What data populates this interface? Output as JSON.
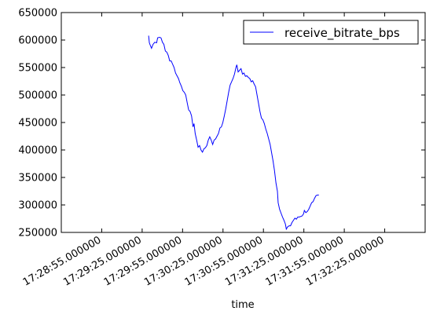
{
  "chart_data": {
    "type": "line",
    "title": "",
    "xlabel": "time",
    "ylabel": "",
    "x_ticks": [
      "17:28:55.000000",
      "17:29:25.000000",
      "17:29:55.000000",
      "17:30:25.000000",
      "17:30:55.000000",
      "17:31:25.000000",
      "17:31:55.000000",
      "17:32:25.000000"
    ],
    "x_range_seconds": [
      0,
      250
    ],
    "y_ticks": [
      250000,
      300000,
      350000,
      400000,
      450000,
      500000,
      550000,
      600000,
      650000
    ],
    "ylim": [
      250000,
      650000
    ],
    "grid": false,
    "legend_position": "top-right",
    "series": [
      {
        "name": "receive_bitrate_bps",
        "color": "#0000ff",
        "points": [
          [
            60.0,
            608000
          ],
          [
            60.5,
            595000
          ],
          [
            61.2,
            590000
          ],
          [
            62.0,
            585000
          ],
          [
            63.0,
            592000
          ],
          [
            64.2,
            596000
          ],
          [
            65.5,
            595000
          ],
          [
            66.2,
            604000
          ],
          [
            67.5,
            605000
          ],
          [
            68.5,
            604000
          ],
          [
            69.5,
            596000
          ],
          [
            70.5,
            592000
          ],
          [
            71.5,
            580000
          ],
          [
            72.5,
            578000
          ],
          [
            73.5,
            572000
          ],
          [
            74.5,
            562000
          ],
          [
            75.5,
            562000
          ],
          [
            76.5,
            556000
          ],
          [
            77.5,
            550000
          ],
          [
            78.5,
            540000
          ],
          [
            79.5,
            535000
          ],
          [
            80.5,
            530000
          ],
          [
            81.5,
            522000
          ],
          [
            82.5,
            516000
          ],
          [
            83.5,
            508000
          ],
          [
            84.5,
            505000
          ],
          [
            85.5,
            500000
          ],
          [
            86.5,
            486000
          ],
          [
            87.5,
            473000
          ],
          [
            88.5,
            470000
          ],
          [
            89.5,
            462000
          ],
          [
            90.5,
            442000
          ],
          [
            91.2,
            448000
          ],
          [
            92.0,
            430000
          ],
          [
            93.0,
            418000
          ],
          [
            94.0,
            405000
          ],
          [
            95.0,
            408000
          ],
          [
            96.0,
            400000
          ],
          [
            97.0,
            396000
          ],
          [
            98.0,
            402000
          ],
          [
            99.0,
            404000
          ],
          [
            100.0,
            408000
          ],
          [
            101.0,
            418000
          ],
          [
            102.0,
            424000
          ],
          [
            103.0,
            418000
          ],
          [
            104.0,
            410000
          ],
          [
            105.0,
            418000
          ],
          [
            106.0,
            420000
          ],
          [
            107.0,
            425000
          ],
          [
            108.0,
            430000
          ],
          [
            109.0,
            440000
          ],
          [
            110.0,
            442000
          ],
          [
            111.0,
            450000
          ],
          [
            112.0,
            462000
          ],
          [
            113.0,
            475000
          ],
          [
            114.0,
            490000
          ],
          [
            115.0,
            505000
          ],
          [
            116.0,
            518000
          ],
          [
            117.0,
            524000
          ],
          [
            118.0,
            530000
          ],
          [
            119.0,
            538000
          ],
          [
            120.0,
            550000
          ],
          [
            120.6,
            555000
          ],
          [
            121.5,
            542000
          ],
          [
            122.5,
            545000
          ],
          [
            123.5,
            548000
          ],
          [
            124.5,
            538000
          ],
          [
            125.5,
            540000
          ],
          [
            126.5,
            534000
          ],
          [
            127.5,
            535000
          ],
          [
            128.5,
            532000
          ],
          [
            129.5,
            530000
          ],
          [
            130.5,
            524000
          ],
          [
            131.5,
            526000
          ],
          [
            132.5,
            520000
          ],
          [
            133.5,
            515000
          ],
          [
            134.5,
            500000
          ],
          [
            135.5,
            485000
          ],
          [
            136.5,
            470000
          ],
          [
            137.5,
            458000
          ],
          [
            138.5,
            455000
          ],
          [
            139.5,
            448000
          ],
          [
            140.5,
            438000
          ],
          [
            141.5,
            430000
          ],
          [
            142.5,
            420000
          ],
          [
            143.5,
            410000
          ],
          [
            144.5,
            395000
          ],
          [
            145.5,
            380000
          ],
          [
            146.5,
            362000
          ],
          [
            147.5,
            340000
          ],
          [
            148.5,
            325000
          ],
          [
            149.0,
            304000
          ],
          [
            150.0,
            292000
          ],
          [
            151.0,
            285000
          ],
          [
            152.0,
            278000
          ],
          [
            153.0,
            272000
          ],
          [
            154.0,
            265000
          ],
          [
            154.6,
            256000
          ],
          [
            155.5,
            260000
          ],
          [
            156.5,
            262000
          ],
          [
            157.5,
            262000
          ],
          [
            158.5,
            268000
          ],
          [
            159.5,
            272000
          ],
          [
            160.5,
            276000
          ],
          [
            161.5,
            274000
          ],
          [
            162.5,
            278000
          ],
          [
            163.5,
            278000
          ],
          [
            164.5,
            279000
          ],
          [
            165.5,
            280000
          ],
          [
            166.5,
            284000
          ],
          [
            167.0,
            290000
          ],
          [
            168.0,
            286000
          ],
          [
            169.0,
            288000
          ],
          [
            170.0,
            292000
          ],
          [
            171.0,
            298000
          ],
          [
            172.0,
            304000
          ],
          [
            173.0,
            306000
          ],
          [
            174.0,
            312000
          ],
          [
            175.0,
            317000
          ],
          [
            176.0,
            318000
          ],
          [
            177.0,
            318000
          ]
        ]
      }
    ]
  }
}
